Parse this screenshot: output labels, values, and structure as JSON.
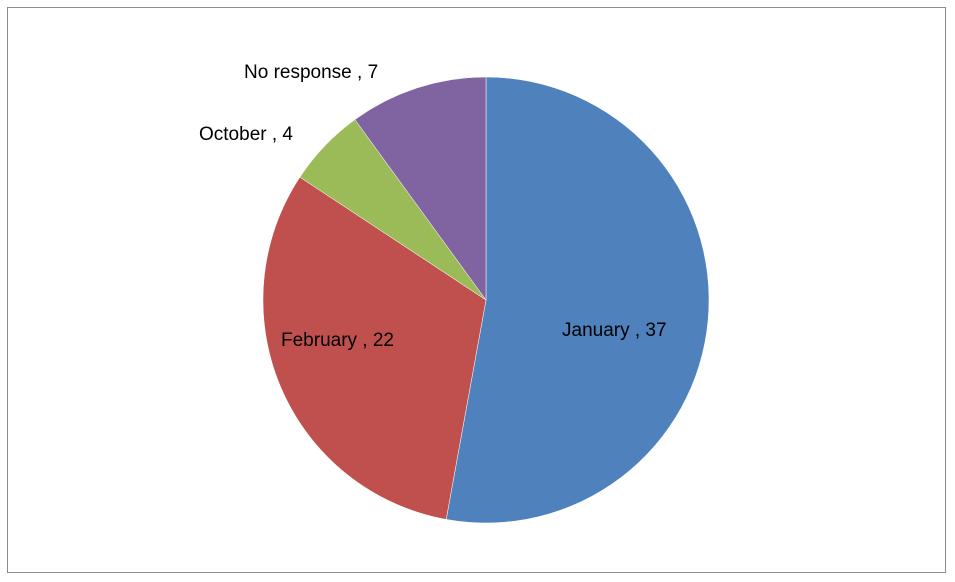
{
  "chart_data": {
    "type": "pie",
    "title": "",
    "slices": [
      {
        "label": "January",
        "value": 37,
        "color": "#4F81BD",
        "label_text": "January , 37"
      },
      {
        "label": "February",
        "value": 22,
        "color": "#C0504D",
        "label_text": "February , 22"
      },
      {
        "label": "October",
        "value": 4,
        "color": "#9BBB59",
        "label_text": "October , 4"
      },
      {
        "label": "No response",
        "value": 7,
        "color": "#8064A2",
        "label_text": "No response , 7"
      }
    ],
    "start_angle": "12 o'clock",
    "direction": "clockwise",
    "legend": "none"
  }
}
